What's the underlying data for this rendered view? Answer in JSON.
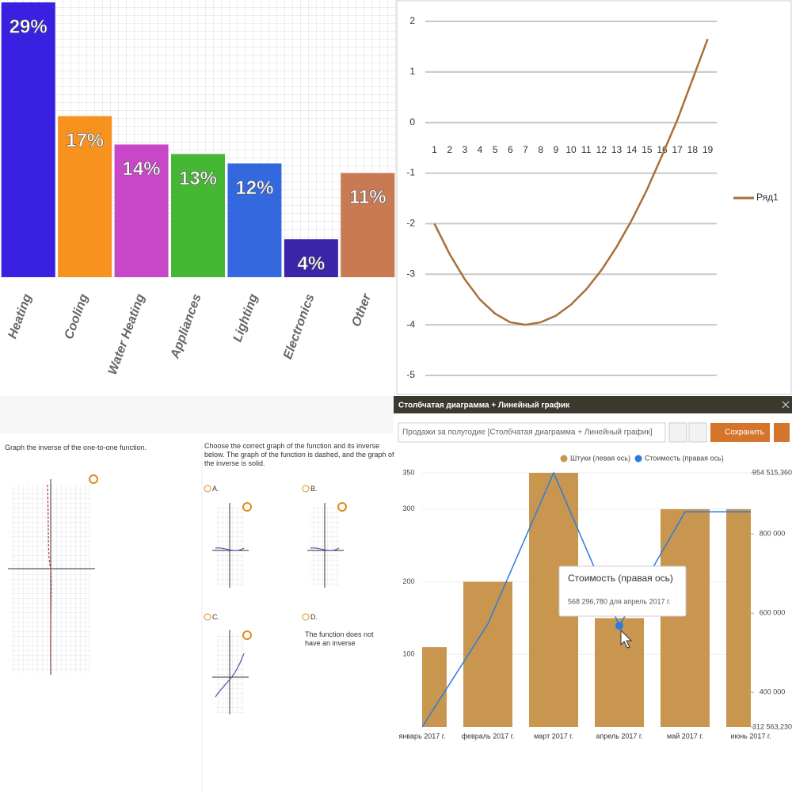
{
  "chart_data": [
    {
      "type": "bar",
      "categories": [
        "Heating",
        "Cooling",
        "Water Heating",
        "Appliances",
        "Lighting",
        "Electronics",
        "Other"
      ],
      "values": [
        29,
        17,
        14,
        13,
        12,
        4,
        11
      ],
      "value_labels": [
        "29%",
        "17%",
        "14%",
        "13%",
        "12%",
        "4%",
        "11%"
      ],
      "colors": [
        "#3a20e0",
        "#f7921e",
        "#c846c8",
        "#44b833",
        "#3468de",
        "#3a24a8",
        "#c97a52"
      ],
      "ylim": [
        0,
        29
      ],
      "grid": true
    },
    {
      "type": "line",
      "x": [
        1,
        2,
        3,
        4,
        5,
        6,
        7,
        8,
        9,
        10,
        11,
        12,
        13,
        14,
        15,
        16,
        17,
        18,
        19
      ],
      "series": [
        {
          "name": "Ряд1",
          "color": "#a8703a",
          "values": [
            -2,
            -2.6,
            -3.1,
            -3.5,
            -3.78,
            -3.95,
            -4,
            -3.95,
            -3.82,
            -3.6,
            -3.3,
            -2.92,
            -2.46,
            -1.93,
            -1.33,
            -0.65,
            0.05,
            0.85,
            1.65
          ]
        }
      ],
      "xlim": [
        0.4,
        19.6
      ],
      "xticks": [
        1,
        2,
        3,
        4,
        5,
        6,
        7,
        8,
        9,
        10,
        11,
        12,
        13,
        14,
        15,
        16,
        17,
        18,
        19
      ],
      "ylim": [
        -5,
        2
      ],
      "yticks": [
        -5,
        -4,
        -3,
        -2,
        -1,
        0,
        1,
        2
      ],
      "grid": true,
      "legend": "right"
    },
    {
      "type": "combo",
      "title": "Столбчатая диаграмма + Линейный график",
      "categories": [
        "январь 2017 г.",
        "февраль 2017 г.",
        "март 2017 г.",
        "апрель 2017 г.",
        "май 2017 г.",
        "июнь 2017 г."
      ],
      "series": [
        {
          "name": "Штуки (левая ось)",
          "type": "bar",
          "color": "#c8964f",
          "values": [
            110,
            200,
            350,
            150,
            300,
            300
          ]
        },
        {
          "name": "Стоимость (правая ось)",
          "type": "line",
          "axis": "y2",
          "color": "#2a7be0",
          "values": [
            312563.23,
            573000,
            954515.36,
            568296.78,
            856000,
            856000
          ]
        }
      ],
      "ylim": [
        0,
        350
      ],
      "yticks": [
        100,
        200,
        300,
        350
      ],
      "y2lim": [
        312563.23,
        954515.36
      ],
      "y2ticks": [
        {
          "value": 954515.36,
          "label": "954 515,360"
        },
        {
          "value": 800000,
          "label": "800 000"
        },
        {
          "value": 600000,
          "label": "600 000"
        },
        {
          "value": 400000,
          "label": "400 000"
        },
        {
          "value": 312563.23,
          "label": "312 563,230"
        }
      ],
      "legend": "top",
      "tooltip": {
        "title": "Стоимость (правая ось)",
        "text": "568 296,780 для апрель 2017 г."
      }
    }
  ],
  "app": {
    "search": "Продажи за полугодие [Столбчатая диаграмма + Линейный график]",
    "save_button": "Сохранить"
  },
  "worksheet": {
    "left_prompt": "Graph the inverse of the one-to-one function.",
    "right_prompt": "Choose the correct graph of the function and its inverse below. The graph of the function is dashed, and the graph of the inverse is solid.",
    "options": [
      "A.",
      "B.",
      "C.",
      "D."
    ],
    "option_d_text": "The function does not have an inverse"
  }
}
